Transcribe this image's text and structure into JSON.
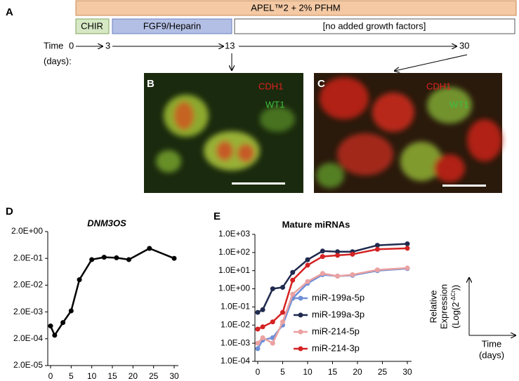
{
  "panel_labels": {
    "a": "A",
    "b": "B",
    "c": "C",
    "d": "D",
    "e": "E"
  },
  "timeline": {
    "medium": "APEL™2 + 2% PFHM",
    "phase1": "CHIR",
    "phase2": "FGF9/Heparin",
    "phase3": "[no added growth factors]",
    "time_label": "Time",
    "days_label": "(days):",
    "t0": "0",
    "t1": "3",
    "t2": "13",
    "t3": "30"
  },
  "images": {
    "stain1": "CDH1",
    "stain2": "WT1"
  },
  "inset": {
    "y_line1": "Relative",
    "y_line2": "Expression",
    "y_line3a": "(Log(2",
    "y_line3b": "-ΔCt",
    "y_line3c": "))",
    "x_line1": "Time",
    "x_line2": "(days)"
  },
  "chart_data": [
    {
      "type": "line",
      "title": "DNM3OS",
      "log_scale": true,
      "x": [
        0,
        1,
        3,
        5,
        7,
        10,
        13,
        16,
        19,
        24,
        30
      ],
      "xlim": [
        0,
        30
      ],
      "xticks": [
        0,
        5,
        10,
        15,
        20,
        25,
        30
      ],
      "ylim": [
        2e-05,
        2
      ],
      "yticks": [
        {
          "value": 2,
          "label": "2.0E+00"
        },
        {
          "value": 0.2,
          "label": "2.0E-01"
        },
        {
          "value": 0.02,
          "label": "2.0E-02"
        },
        {
          "value": 0.002,
          "label": "2.0E-03"
        },
        {
          "value": 0.0002,
          "label": "2.0E-04"
        },
        {
          "value": 2e-05,
          "label": "2.0E-05"
        }
      ],
      "series": [
        {
          "color": "#000000",
          "values": [
            0.0006,
            0.00027,
            0.0008,
            0.0022,
            0.032,
            0.18,
            0.22,
            0.21,
            0.18,
            0.47,
            0.2
          ]
        }
      ]
    },
    {
      "type": "line",
      "title": "Mature miRNAs",
      "log_scale": true,
      "x": [
        0,
        1,
        3,
        5,
        7,
        10,
        13,
        16,
        19,
        24,
        30
      ],
      "xlim": [
        0,
        30
      ],
      "xticks": [
        0,
        5,
        10,
        15,
        20,
        25,
        30
      ],
      "ylim": [
        0.0001,
        1000
      ],
      "yticks": [
        {
          "value": 1000,
          "label": "1.0E+03"
        },
        {
          "value": 100,
          "label": "1.0E+02"
        },
        {
          "value": 10,
          "label": "1.0E+01"
        },
        {
          "value": 1,
          "label": "1.0E+00"
        },
        {
          "value": 0.1,
          "label": "1.0E-01"
        },
        {
          "value": 0.01,
          "label": "1.0E-02"
        },
        {
          "value": 0.001,
          "label": "1.0E-03"
        },
        {
          "value": 0.0001,
          "label": "1.0E-04"
        }
      ],
      "series": [
        {
          "name": "miR-199a-5p",
          "color": "#6f8fd6",
          "values": [
            0.0005,
            0.0015,
            0.002,
            0.01,
            0.3,
            2,
            6,
            5,
            5.5,
            10,
            13
          ]
        },
        {
          "name": "miR-199a-3p",
          "color": "#1f2a4e",
          "values": [
            0.05,
            0.07,
            1,
            1.2,
            8,
            40,
            120,
            110,
            110,
            250,
            300
          ]
        },
        {
          "name": "miR-214-5p",
          "color": "#eba1a1",
          "values": [
            0.001,
            0.002,
            0.001,
            0.015,
            0.5,
            2.5,
            7,
            5,
            6,
            11,
            14
          ]
        },
        {
          "name": "miR-214-3p",
          "color": "#d42222",
          "values": [
            0.006,
            0.008,
            0.015,
            0.05,
            3,
            20,
            60,
            70,
            80,
            150,
            170
          ]
        }
      ]
    }
  ]
}
